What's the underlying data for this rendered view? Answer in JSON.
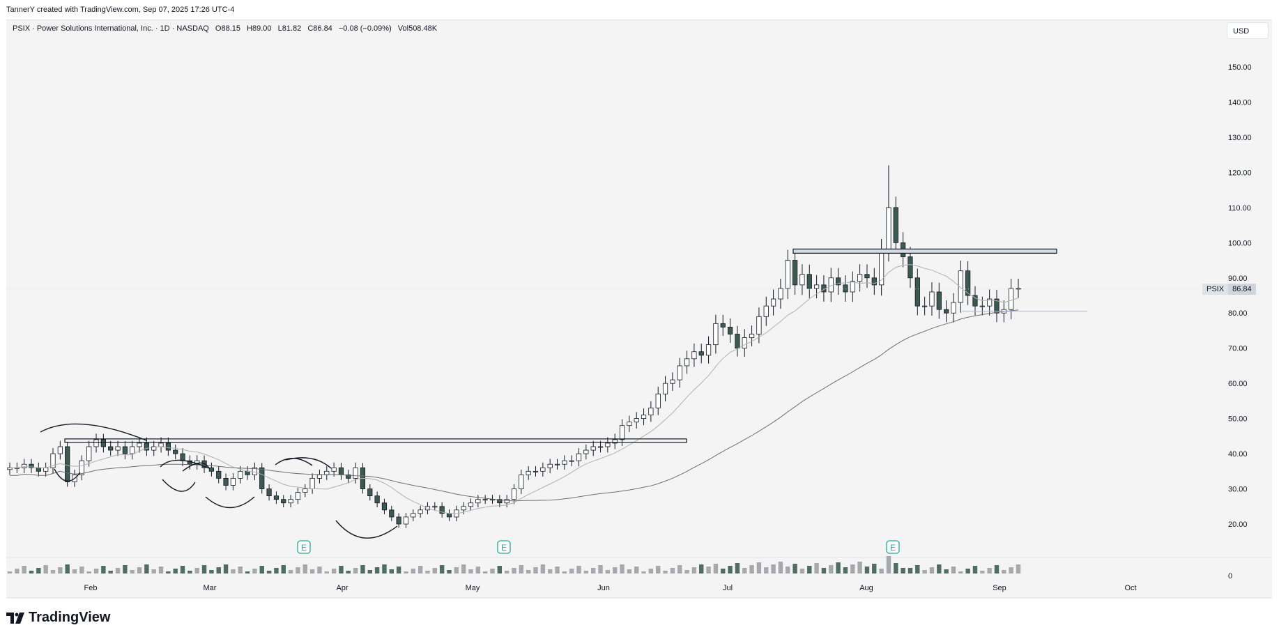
{
  "header": {
    "credit": "TannerY created with TradingView.com, Sep 07, 2025 17:26 UTC-4"
  },
  "legend": {
    "symbol_line": "PSIX · Power Solutions International, Inc. · 1D · NASDAQ",
    "open": "O88.15",
    "high": "H89.00",
    "low": "L81.82",
    "close": "C86.84",
    "change": "−0.08 (−0.09%)",
    "volume": "Vol508.48K"
  },
  "currency_button": "USD",
  "price_tag": {
    "symbol": "PSIX",
    "value": "86.84"
  },
  "footer": {
    "brand": "TradingView"
  },
  "colors": {
    "up_candle": "#ffffff",
    "down_candle": "#3d5a50",
    "wick": "#131722",
    "ma_short": "#b0b0b0",
    "ma_long": "#6e6e6e",
    "earnings": "#22ab94"
  },
  "chart_data": {
    "type": "candlestick",
    "y_ticks": [
      "150.00",
      "140.00",
      "130.00",
      "120.00",
      "110.00",
      "100.00",
      "90.00",
      "80.00",
      "70.00",
      "60.00",
      "50.00",
      "40.00",
      "30.00",
      "20.00"
    ],
    "x_ticks": [
      "Feb",
      "Mar",
      "Apr",
      "May",
      "Jun",
      "Jul",
      "Aug",
      "Sep",
      "Oct"
    ],
    "volume_axis_label": "0",
    "ylim": [
      14,
      160
    ],
    "earnings_markers": [
      "E",
      "E",
      "E"
    ],
    "candles_close": [
      36,
      36,
      37,
      36,
      35,
      36,
      40,
      42,
      32,
      34,
      38,
      42,
      44,
      42,
      41,
      42,
      40,
      42,
      43,
      41,
      42,
      43,
      41,
      40,
      38,
      37,
      38,
      36,
      35,
      33,
      31,
      33,
      35,
      34,
      36,
      30,
      28,
      27,
      26,
      27,
      29,
      30,
      33,
      34,
      35,
      36,
      34,
      33,
      36,
      30,
      28,
      26,
      24,
      22,
      20,
      22,
      23,
      24,
      25,
      25,
      23,
      22,
      24,
      25,
      26,
      27,
      27,
      27,
      26,
      27,
      30,
      34,
      35,
      35,
      36,
      37,
      37,
      38,
      38,
      40,
      41,
      42,
      42,
      43,
      44,
      48,
      49,
      50,
      51,
      53,
      57,
      60,
      61,
      65,
      67,
      69,
      68,
      71,
      77,
      76,
      74,
      70,
      73,
      74,
      79,
      82,
      84,
      87,
      95,
      88,
      91,
      87,
      88,
      86,
      90,
      88,
      86,
      89,
      91,
      90,
      88,
      98,
      110,
      100,
      96,
      90,
      82,
      82,
      86,
      81,
      80,
      83,
      92,
      85,
      82,
      82,
      84,
      80,
      81,
      87,
      87
    ],
    "annotations": [
      {
        "type": "horizontal-band",
        "label": ""
      },
      {
        "type": "horizontal-band",
        "label": ""
      },
      {
        "type": "arc",
        "label": ""
      }
    ]
  }
}
